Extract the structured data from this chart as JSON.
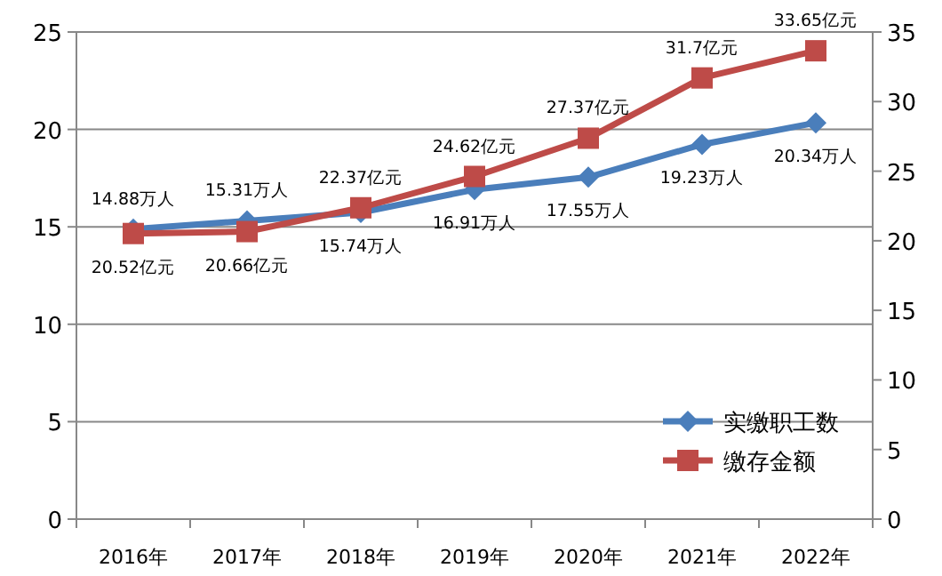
{
  "chart_data": {
    "type": "line",
    "categories": [
      "2016年",
      "2017年",
      "2018年",
      "2019年",
      "2020年",
      "2021年",
      "2022年"
    ],
    "series": [
      {
        "name": "实缴职工数",
        "color": "#4a7ebb",
        "marker": "diamond",
        "values": [
          14.88,
          15.31,
          15.74,
          16.91,
          17.55,
          19.23,
          20.34
        ],
        "value_labels": [
          "14.88万人",
          "15.31万人",
          "15.74万人",
          "16.91万人",
          "17.55万人",
          "19.23万人",
          "20.34万人"
        ]
      },
      {
        "name": "缴存金额",
        "color": "#be4b48",
        "marker": "square",
        "axis": "y2",
        "values": [
          20.52,
          20.66,
          22.37,
          24.62,
          27.37,
          31.7,
          33.65
        ],
        "value_labels": [
          "20.52亿元",
          "20.66亿元",
          "22.37亿元",
          "24.62亿元",
          "27.37亿元",
          "31.7亿元",
          "33.65亿元"
        ]
      }
    ],
    "ylim": [
      0,
      25
    ],
    "yticks": [
      0,
      5,
      10,
      15,
      20,
      25
    ],
    "y2lim": [
      0,
      35
    ],
    "y2ticks": [
      0,
      5,
      10,
      15,
      20,
      25,
      30,
      35
    ],
    "grid": "y",
    "legend": "bottom right",
    "line_style": "solid"
  }
}
